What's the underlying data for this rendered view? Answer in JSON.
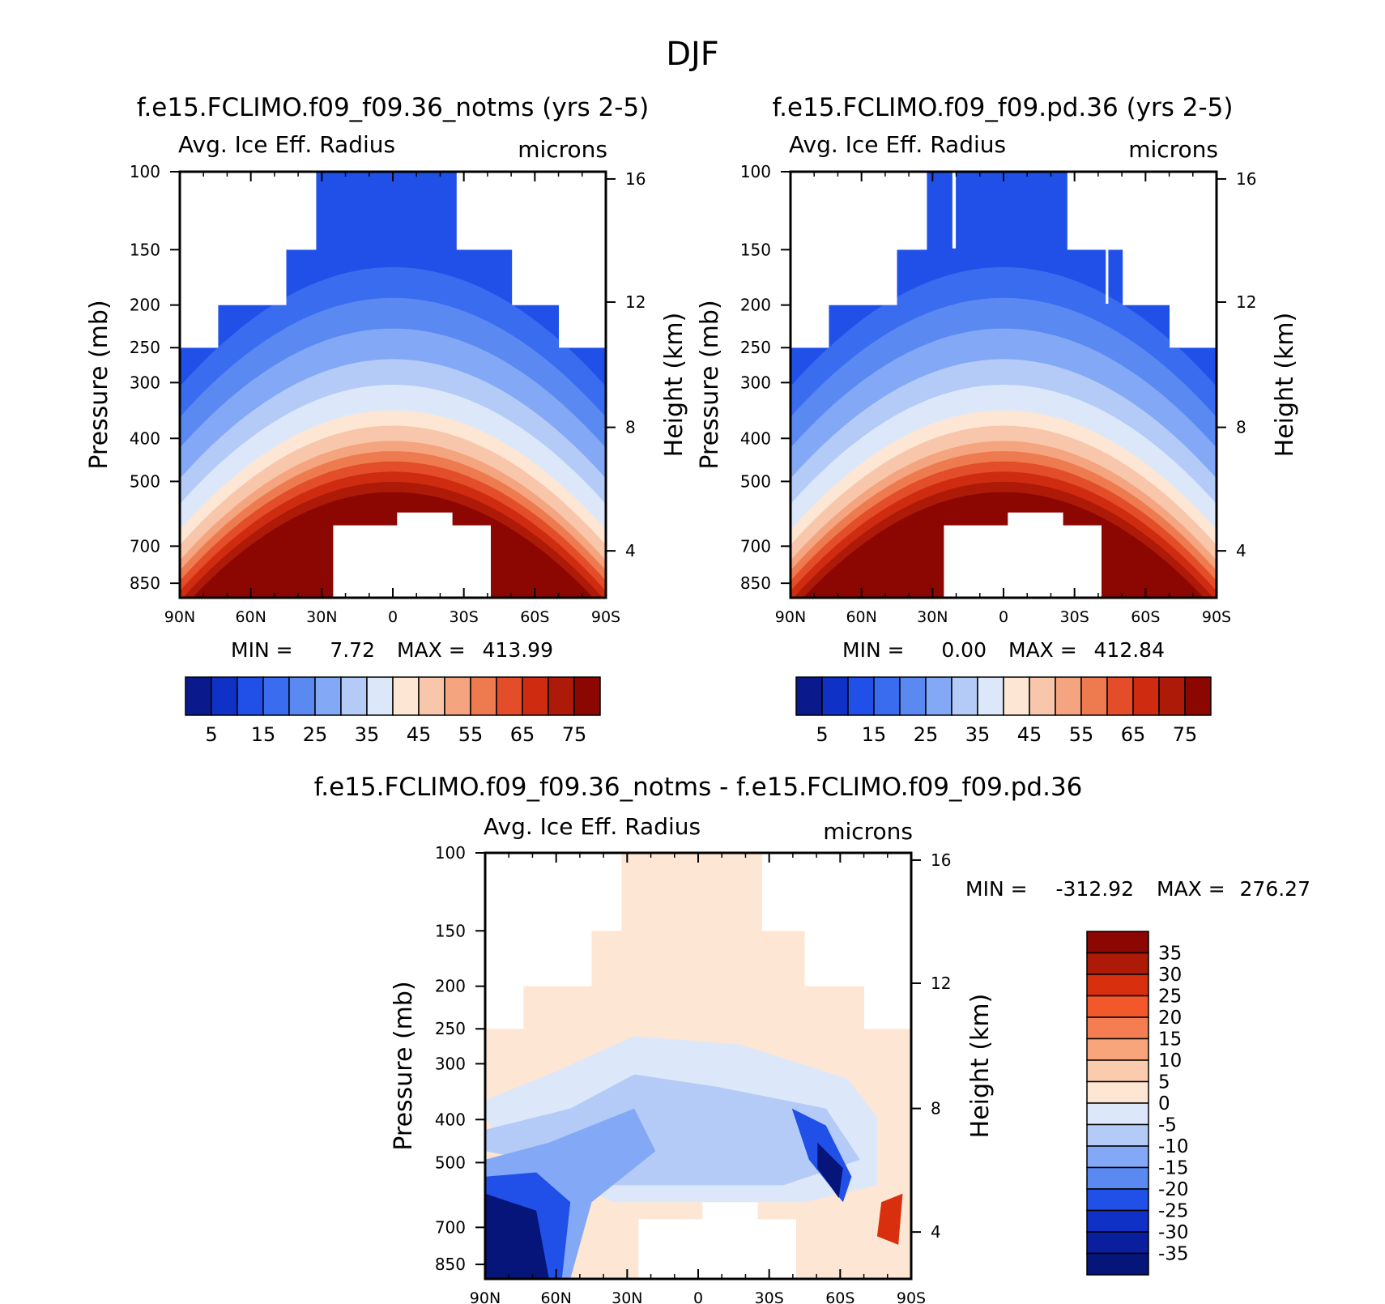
{
  "page_title": "DJF",
  "chart_data": [
    {
      "type": "contour",
      "title": "f.e15.FCLIMO.f09_f09.36_notms (yrs 2-5)",
      "left_label": "Avg. Ice Eff. Radius",
      "right_label": "microns",
      "ylabel": "Pressure (mb)",
      "y2label": "Height (km)",
      "xticks": [
        "90N",
        "60N",
        "30N",
        "0",
        "30S",
        "60S",
        "90S"
      ],
      "yticks": [
        "100",
        "150",
        "200",
        "250",
        "300",
        "400",
        "500",
        "700",
        "850"
      ],
      "y2ticks": [
        "16",
        "12",
        "8",
        "4"
      ],
      "min_label": "MIN =",
      "min_value": "7.72",
      "max_label": "MAX =",
      "max_value": "413.99",
      "colorbar_labels": [
        "5",
        "15",
        "25",
        "35",
        "45",
        "55",
        "65",
        "75"
      ],
      "colors": [
        "#0a1a8c",
        "#0f31c6",
        "#2050e8",
        "#3a6cf0",
        "#5a89f2",
        "#83a8f5",
        "#b5cbf7",
        "#dce8f9",
        "#fde6d4",
        "#f8c7ab",
        "#f4a47e",
        "#ee7a50",
        "#e34d29",
        "#cf2b11",
        "#ad1a07",
        "#8c0602"
      ],
      "variant": "notms"
    },
    {
      "type": "contour",
      "title": "f.e15.FCLIMO.f09_f09.pd.36 (yrs 2-5)",
      "left_label": "Avg. Ice Eff. Radius",
      "right_label": "microns",
      "ylabel": "Pressure (mb)",
      "y2label": "Height (km)",
      "xticks": [
        "90N",
        "60N",
        "30N",
        "0",
        "30S",
        "60S",
        "90S"
      ],
      "yticks": [
        "100",
        "150",
        "200",
        "250",
        "300",
        "400",
        "500",
        "700",
        "850"
      ],
      "y2ticks": [
        "16",
        "12",
        "8",
        "4"
      ],
      "min_label": "MIN =",
      "min_value": "0.00",
      "max_label": "MAX =",
      "max_value": "412.84",
      "colorbar_labels": [
        "5",
        "15",
        "25",
        "35",
        "45",
        "55",
        "65",
        "75"
      ],
      "colors": [
        "#0a1a8c",
        "#0f31c6",
        "#2050e8",
        "#3a6cf0",
        "#5a89f2",
        "#83a8f5",
        "#b5cbf7",
        "#dce8f9",
        "#fde6d4",
        "#f8c7ab",
        "#f4a47e",
        "#ee7a50",
        "#e34d29",
        "#cf2b11",
        "#ad1a07",
        "#8c0602"
      ],
      "variant": "pd"
    },
    {
      "type": "contour-difference",
      "title": "f.e15.FCLIMO.f09_f09.36_notms - f.e15.FCLIMO.f09_f09.pd.36",
      "left_label": "Avg. Ice Eff. Radius",
      "right_label": "microns",
      "ylabel": "Pressure (mb)",
      "y2label": "Height (km)",
      "xticks": [
        "90N",
        "60N",
        "30N",
        "0",
        "30S",
        "60S",
        "90S"
      ],
      "yticks": [
        "100",
        "150",
        "200",
        "250",
        "300",
        "400",
        "500",
        "700",
        "850"
      ],
      "y2ticks": [
        "16",
        "12",
        "8",
        "4"
      ],
      "min_label": "MIN =",
      "min_value": "-312.92",
      "max_label": "MAX =",
      "max_value": "276.27",
      "colorbar_labels": [
        "35",
        "30",
        "25",
        "20",
        "15",
        "10",
        "5",
        "0",
        "-5",
        "-10",
        "-15",
        "-20",
        "-25",
        "-30",
        "-35"
      ],
      "colors": [
        "#8c0602",
        "#ad1a07",
        "#d8300e",
        "#f2582a",
        "#f47d52",
        "#f8a57c",
        "#fbcbae",
        "#fde6d4",
        "#dce8f9",
        "#b5cbf7",
        "#83a8f5",
        "#5a89f2",
        "#2050e8",
        "#0f31c6",
        "#0a1f9e",
        "#06157a"
      ]
    }
  ]
}
